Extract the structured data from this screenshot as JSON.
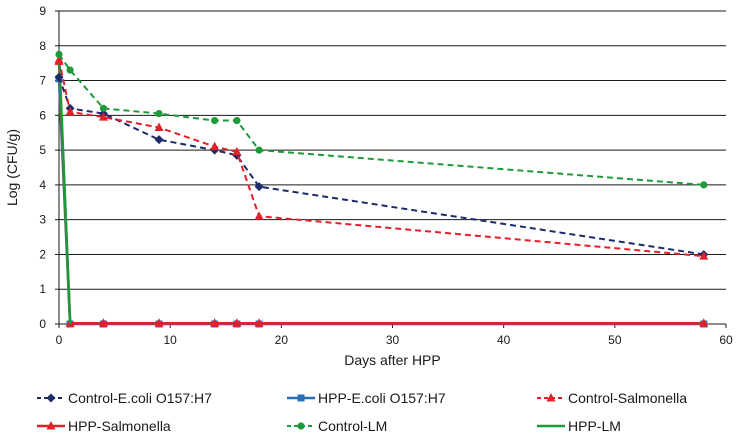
{
  "chart_data": {
    "type": "line",
    "title": "",
    "xlabel": "Days after HPP",
    "ylabel": "Log (CFU/g)",
    "xlim": [
      0,
      60
    ],
    "ylim": [
      0,
      9
    ],
    "xticks": [
      0,
      10,
      20,
      30,
      40,
      50,
      60
    ],
    "yticks": [
      0,
      1,
      2,
      3,
      4,
      5,
      6,
      7,
      8,
      9
    ],
    "grid": "horizontal",
    "legend_position": "bottom",
    "series": [
      {
        "name": "Control-E.coli O157:H7",
        "color": "#1f2a6b",
        "dash": true,
        "marker": "diamond",
        "points": [
          [
            0,
            7.1
          ],
          [
            1,
            6.2
          ],
          [
            4,
            6.05
          ],
          [
            9,
            5.3
          ],
          [
            14,
            5.0
          ],
          [
            16,
            4.85
          ],
          [
            18,
            3.95
          ],
          [
            58,
            2.0
          ]
        ]
      },
      {
        "name": "HPP-E.coli O157:H7",
        "color": "#2a6fb5",
        "dash": false,
        "marker": "square",
        "points": [
          [
            0,
            7.05
          ],
          [
            1,
            0
          ],
          [
            4,
            0
          ],
          [
            9,
            0
          ],
          [
            14,
            0
          ],
          [
            16,
            0
          ],
          [
            18,
            0
          ],
          [
            58,
            0
          ]
        ]
      },
      {
        "name": "Control-Salmonella",
        "color": "#e3202a",
        "dash": true,
        "marker": "triangle",
        "points": [
          [
            0,
            7.6
          ],
          [
            1,
            6.1
          ],
          [
            4,
            5.95
          ],
          [
            9,
            5.65
          ],
          [
            14,
            5.1
          ],
          [
            16,
            4.95
          ],
          [
            18,
            3.1
          ],
          [
            58,
            1.95
          ]
        ]
      },
      {
        "name": "HPP-Salmonella",
        "color": "#e3202a",
        "dash": false,
        "marker": "triangle",
        "points": [
          [
            0,
            7.55
          ],
          [
            1,
            0.02
          ],
          [
            4,
            0.02
          ],
          [
            9,
            0.02
          ],
          [
            14,
            0.02
          ],
          [
            16,
            0.02
          ],
          [
            18,
            0.02
          ],
          [
            58,
            0.02
          ]
        ]
      },
      {
        "name": "Control-LM",
        "color": "#1e9a3a",
        "dash": true,
        "marker": "circle",
        "points": [
          [
            0,
            7.75
          ],
          [
            1,
            7.3
          ],
          [
            4,
            6.2
          ],
          [
            9,
            6.05
          ],
          [
            14,
            5.85
          ],
          [
            16,
            5.85
          ],
          [
            18,
            5.0
          ],
          [
            58,
            4.0
          ]
        ]
      },
      {
        "name": "HPP-LM",
        "color": "#1e9a3a",
        "dash": false,
        "marker": "none",
        "points": [
          [
            0,
            7.8
          ],
          [
            1,
            0.0
          ]
        ]
      }
    ]
  }
}
